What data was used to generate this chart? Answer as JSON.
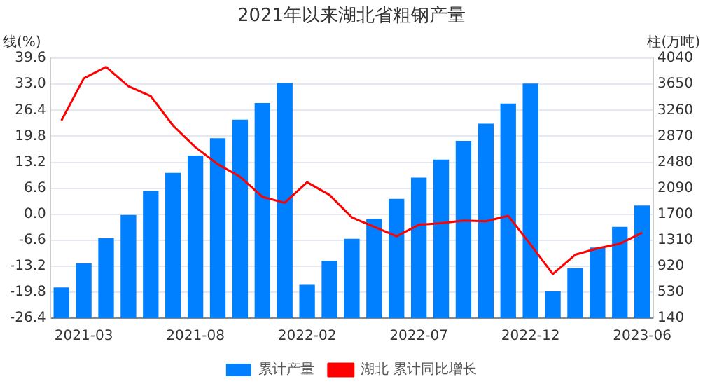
{
  "chart_data": {
    "type": "bar",
    "title": "2021年以来湖北省粗钢产量",
    "ylabel": "线(%)",
    "y2label": "柱(万吨)",
    "categories": [
      null,
      "2021-03",
      null,
      null,
      null,
      null,
      "2021-08",
      null,
      null,
      null,
      null,
      "2022-02",
      null,
      null,
      null,
      null,
      "2022-07",
      null,
      null,
      null,
      null,
      "2022-12",
      null,
      null,
      null,
      null,
      "2023-06"
    ],
    "series": [
      {
        "name": "累计产量",
        "axis": "y2",
        "color": "#0080ff",
        "values": [
          600,
          960,
          1340,
          1690,
          2050,
          2320,
          2580,
          2840,
          3120,
          3370,
          3670,
          640,
          1000,
          1330,
          1630,
          1930,
          2250,
          2520,
          2800,
          3060,
          3360,
          3660,
          540,
          890,
          1200,
          1510,
          1830
        ]
      },
      {
        "name": "湖北 累计同比增长",
        "type": "line",
        "color": "#ff0000",
        "values": [
          23.8,
          34.5,
          37.4,
          32.5,
          30.0,
          22.5,
          17.0,
          12.7,
          9.5,
          4.4,
          2.9,
          8.1,
          4.9,
          -0.8,
          -3.2,
          -5.6,
          -2.7,
          -2.3,
          -1.6,
          -1.8,
          -0.4,
          -7.7,
          -15.2,
          -10.3,
          -8.7,
          -7.5,
          -4.7
        ]
      }
    ],
    "ylim": [
      -26.4,
      39.6
    ],
    "yticks": [
      {
        "value": -26.4,
        "label": "-26.4"
      },
      {
        "value": -19.8,
        "label": "-19.8"
      },
      {
        "value": -13.2,
        "label": "-13.2"
      },
      {
        "value": -6.6,
        "label": "-6.6"
      },
      {
        "value": 0,
        "label": "0.0"
      },
      {
        "value": 6.6,
        "label": "6.6"
      },
      {
        "value": 13.2,
        "label": "13.2"
      },
      {
        "value": 19.8,
        "label": "19.8"
      },
      {
        "value": 26.4,
        "label": "26.4"
      },
      {
        "value": 33,
        "label": "33.0"
      },
      {
        "value": 39.6,
        "label": "39.6"
      }
    ],
    "y2lim": [
      140,
      4040
    ],
    "y2ticks": [
      140,
      530,
      920,
      1310,
      1700,
      2090,
      2480,
      2870,
      3260,
      3650,
      4040
    ],
    "grid": "y",
    "legend": "bottom",
    "marker": "none",
    "line_style": "solid"
  }
}
